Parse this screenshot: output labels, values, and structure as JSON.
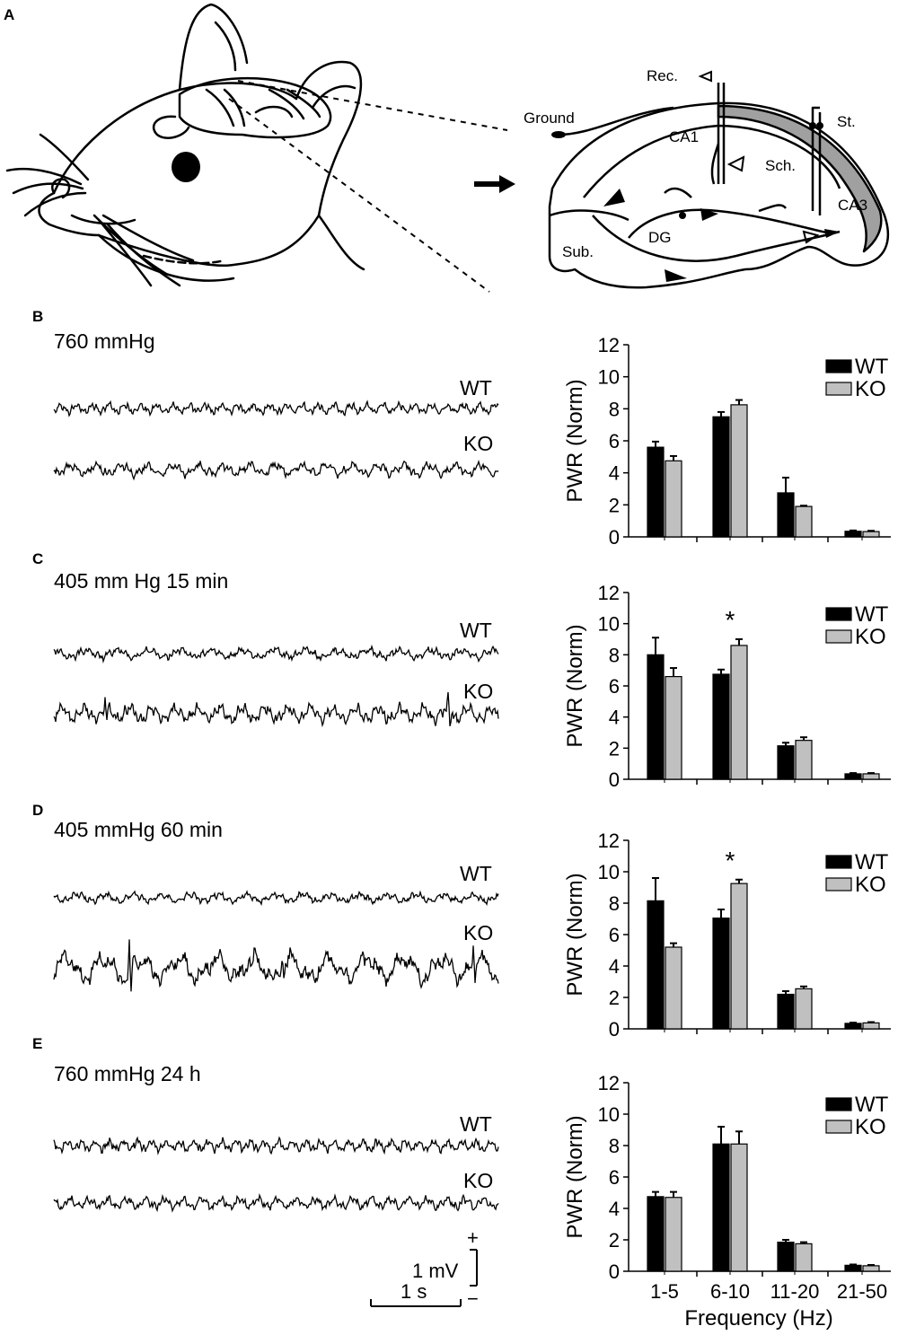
{
  "panels": {
    "A": "A",
    "B": "B",
    "C": "C",
    "D": "D",
    "E": "E"
  },
  "diagram": {
    "labels": [
      "Rec.",
      "Ground",
      "St.",
      "CA1",
      "Sch.",
      "CA3",
      "Sub.",
      "DG"
    ]
  },
  "traces": [
    {
      "condition": "760 mmHg",
      "wt": "WT",
      "ko": "KO"
    },
    {
      "condition": "405 mm Hg 15 min",
      "wt": "WT",
      "ko": "KO"
    },
    {
      "condition": "405 mmHg 60 min",
      "wt": "WT",
      "ko": "KO"
    },
    {
      "condition": "760 mmHg 24 h",
      "wt": "WT",
      "ko": "KO"
    }
  ],
  "scale_bar": {
    "voltage": "1 mV",
    "time": "1 s",
    "plus": "+",
    "minus": "−"
  },
  "colors": {
    "wt": "#000000",
    "ko": "#c0c0c0",
    "diagram_band": "#a0a0a0"
  },
  "chart_data": [
    {
      "type": "bar",
      "panel": "B",
      "categories": [
        "1-5",
        "6-10",
        "11-20",
        "21-50"
      ],
      "series": [
        {
          "name": "WT",
          "values": [
            5.6,
            7.5,
            2.75,
            0.35
          ],
          "errors": [
            0.35,
            0.3,
            0.95,
            0.05
          ]
        },
        {
          "name": "KO",
          "values": [
            4.75,
            8.25,
            1.9,
            0.33
          ],
          "errors": [
            0.3,
            0.3,
            0.05,
            0.05
          ]
        }
      ],
      "ylabel": "PWR (Norm)",
      "xlabel": "",
      "ylim": [
        0,
        12
      ],
      "yticks": [
        0,
        2,
        4,
        6,
        8,
        10,
        12
      ],
      "legend": "top-right",
      "significance": []
    },
    {
      "type": "bar",
      "panel": "C",
      "categories": [
        "1-5",
        "6-10",
        "11-20",
        "21-50"
      ],
      "series": [
        {
          "name": "WT",
          "values": [
            8.0,
            6.75,
            2.15,
            0.35
          ],
          "errors": [
            1.1,
            0.3,
            0.2,
            0.05
          ]
        },
        {
          "name": "KO",
          "values": [
            6.6,
            8.6,
            2.5,
            0.35
          ],
          "errors": [
            0.55,
            0.4,
            0.2,
            0.05
          ]
        }
      ],
      "ylabel": "PWR (Norm)",
      "xlabel": "",
      "ylim": [
        0,
        12
      ],
      "yticks": [
        0,
        2,
        4,
        6,
        8,
        10,
        12
      ],
      "legend": "top-right",
      "significance": [
        {
          "category": "6-10",
          "mark": "*"
        }
      ]
    },
    {
      "type": "bar",
      "panel": "D",
      "categories": [
        "1-5",
        "6-10",
        "11-20",
        "21-50"
      ],
      "series": [
        {
          "name": "WT",
          "values": [
            8.15,
            7.05,
            2.2,
            0.35
          ],
          "errors": [
            1.45,
            0.55,
            0.2,
            0.05
          ]
        },
        {
          "name": "KO",
          "values": [
            5.2,
            9.25,
            2.55,
            0.38
          ],
          "errors": [
            0.25,
            0.25,
            0.15,
            0.05
          ]
        }
      ],
      "ylabel": "PWR (Norm)",
      "xlabel": "",
      "ylim": [
        0,
        12
      ],
      "yticks": [
        0,
        2,
        4,
        6,
        8,
        10,
        12
      ],
      "legend": "top-right",
      "significance": [
        {
          "category": "6-10",
          "mark": "*"
        }
      ]
    },
    {
      "type": "bar",
      "panel": "E",
      "categories": [
        "1-5",
        "6-10",
        "11-20",
        "21-50"
      ],
      "series": [
        {
          "name": "WT",
          "values": [
            4.75,
            8.1,
            1.85,
            0.38
          ],
          "errors": [
            0.3,
            1.1,
            0.15,
            0.05
          ]
        },
        {
          "name": "KO",
          "values": [
            4.7,
            8.1,
            1.75,
            0.35
          ],
          "errors": [
            0.35,
            0.8,
            0.1,
            0.05
          ]
        }
      ],
      "ylabel": "PWR (Norm)",
      "xlabel": "Frequency (Hz)",
      "ylim": [
        0,
        12
      ],
      "yticks": [
        0,
        2,
        4,
        6,
        8,
        10,
        12
      ],
      "legend": "top-right",
      "significance": []
    }
  ]
}
